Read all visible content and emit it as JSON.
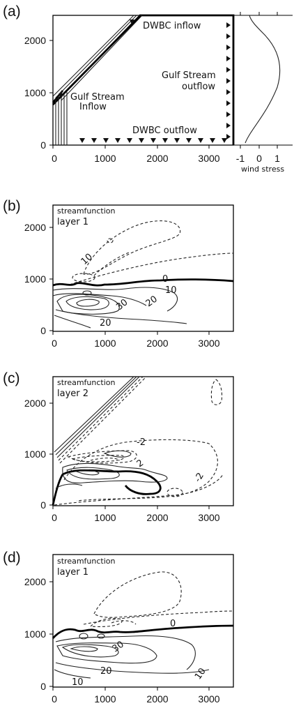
{
  "panels": {
    "a": {
      "label": "(a)",
      "annotations": {
        "dwbc_inflow": "DWBC inflow",
        "gulf_stream_outflow_1": "Gulf Stream",
        "gulf_stream_outflow_2": "outflow",
        "gulf_stream_inflow_1": "Gulf Stream",
        "gulf_stream_inflow_2": "Inflow",
        "dwbc_outflow": "DWBC outflow",
        "wind_stress": "wind stress"
      },
      "x_ticks": [
        "0",
        "1000",
        "2000",
        "3000"
      ],
      "y_ticks": [
        "0",
        "1000",
        "2000"
      ],
      "wind_ticks": [
        "-1",
        "0",
        "1"
      ]
    },
    "b": {
      "label": "(b)",
      "title_1": "streamfunction",
      "title_2": "layer 1",
      "contour_labels": [
        "10",
        "0",
        "10",
        "30",
        "20",
        "20"
      ],
      "x_ticks": [
        "0",
        "1000",
        "2000",
        "3000"
      ],
      "y_ticks": [
        "0",
        "1000",
        "2000"
      ]
    },
    "c": {
      "label": "(c)",
      "title_1": "streamfunction",
      "title_2": "layer 2",
      "contour_labels": [
        "-2",
        "2",
        "-2"
      ],
      "x_ticks": [
        "0",
        "1000",
        "2000",
        "3000"
      ],
      "y_ticks": [
        "0",
        "1000",
        "2000"
      ]
    },
    "d": {
      "label": "(d)",
      "title_1": "streamfunction",
      "title_2": "layer 1",
      "contour_labels": [
        "0",
        "30",
        "20",
        "10",
        "10"
      ],
      "x_ticks": [
        "0",
        "1000",
        "2000",
        "3000"
      ],
      "y_ticks": [
        "0",
        "1000",
        "2000"
      ]
    }
  }
}
